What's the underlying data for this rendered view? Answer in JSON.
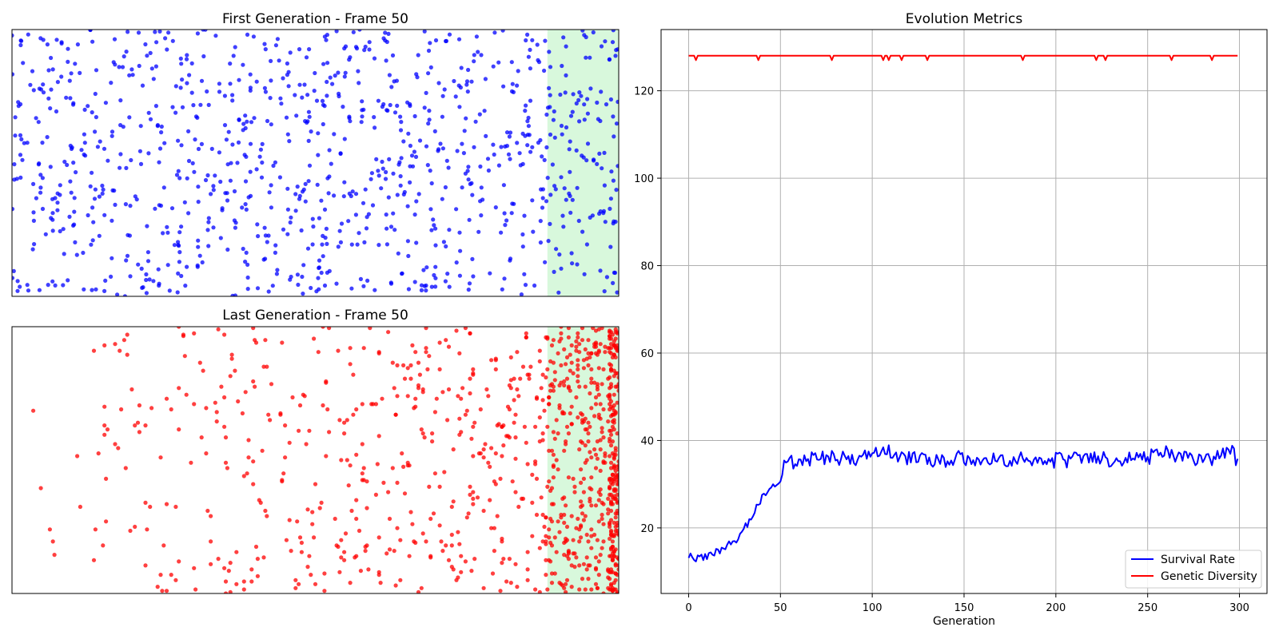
{
  "chart_data": [
    {
      "type": "scatter",
      "title": "First Generation - Frame 50",
      "xlabel": "",
      "ylabel": "",
      "xlim": [
        0,
        200
      ],
      "ylim": [
        0,
        100
      ],
      "axes_visible": false,
      "goal_zone": {
        "x_start": 176.5,
        "x_end": 200,
        "color": "#d8f8dc"
      },
      "marker_color": "#0000ff",
      "marker_alpha": 0.75,
      "point_count": 1000,
      "x_distribution": "uniform",
      "points": "1000 individuals, positions spread uniformly across the full arena"
    },
    {
      "type": "scatter",
      "title": "Last Generation - Frame 50",
      "xlabel": "",
      "ylabel": "",
      "xlim": [
        0,
        200
      ],
      "ylim": [
        0,
        100
      ],
      "axes_visible": false,
      "goal_zone": {
        "x_start": 176.5,
        "x_end": 200,
        "color": "#d8f8dc"
      },
      "marker_color": "#ff0000",
      "marker_alpha": 0.75,
      "point_count": 1000,
      "x_distribution": "skewed toward the right edge, dense column at x≈200, sparse on the left",
      "points": "1000 individuals, mostly in the right half and goal zone"
    },
    {
      "type": "line",
      "title": "Evolution Metrics",
      "xlabel": "Generation",
      "ylabel": "",
      "xlim": [
        -15,
        315
      ],
      "ylim": [
        5,
        134
      ],
      "xticks": [
        0,
        50,
        100,
        150,
        200,
        250,
        300
      ],
      "yticks": [
        20,
        40,
        60,
        80,
        100,
        120
      ],
      "grid": true,
      "legend": "lower right",
      "series": [
        {
          "name": "Survival Rate",
          "color": "#0000ff",
          "x_start": 0,
          "x_end": 299,
          "anchors": [
            [
              0,
              14
            ],
            [
              3,
              12.5
            ],
            [
              6,
              13
            ],
            [
              10,
              13.5
            ],
            [
              15,
              14.5
            ],
            [
              20,
              15.5
            ],
            [
              25,
              17
            ],
            [
              30,
              19.5
            ],
            [
              35,
              23
            ],
            [
              40,
              27
            ],
            [
              45,
              29.5
            ],
            [
              50,
              31
            ],
            [
              53,
              35
            ],
            [
              60,
              35
            ],
            [
              70,
              36
            ],
            [
              80,
              36
            ],
            [
              90,
              36
            ],
            [
              100,
              36
            ],
            [
              106,
              39
            ],
            [
              110,
              37
            ],
            [
              120,
              36
            ],
            [
              130,
              35.5
            ],
            [
              140,
              35.5
            ],
            [
              150,
              36
            ],
            [
              160,
              35.5
            ],
            [
              170,
              35.5
            ],
            [
              180,
              35.5
            ],
            [
              190,
              35.5
            ],
            [
              200,
              35.5
            ],
            [
              210,
              35.5
            ],
            [
              220,
              36
            ],
            [
              230,
              35.5
            ],
            [
              240,
              36
            ],
            [
              250,
              36
            ],
            [
              260,
              37
            ],
            [
              270,
              36
            ],
            [
              280,
              35.5
            ],
            [
              290,
              36
            ],
            [
              294,
              39
            ],
            [
              299,
              35
            ]
          ],
          "noise": 1.8
        },
        {
          "name": "Genetic Diversity",
          "color": "#ff0000",
          "baseline": 128,
          "x_start": 0,
          "x_end": 299,
          "dips": [
            [
              4,
              127
            ],
            [
              38,
              127
            ],
            [
              78,
              127
            ],
            [
              106,
              127
            ],
            [
              109,
              127
            ],
            [
              116,
              127
            ],
            [
              130,
              127
            ],
            [
              182,
              127
            ],
            [
              222,
              127
            ],
            [
              227,
              127
            ],
            [
              263,
              127
            ],
            [
              285,
              127
            ]
          ]
        }
      ]
    }
  ]
}
